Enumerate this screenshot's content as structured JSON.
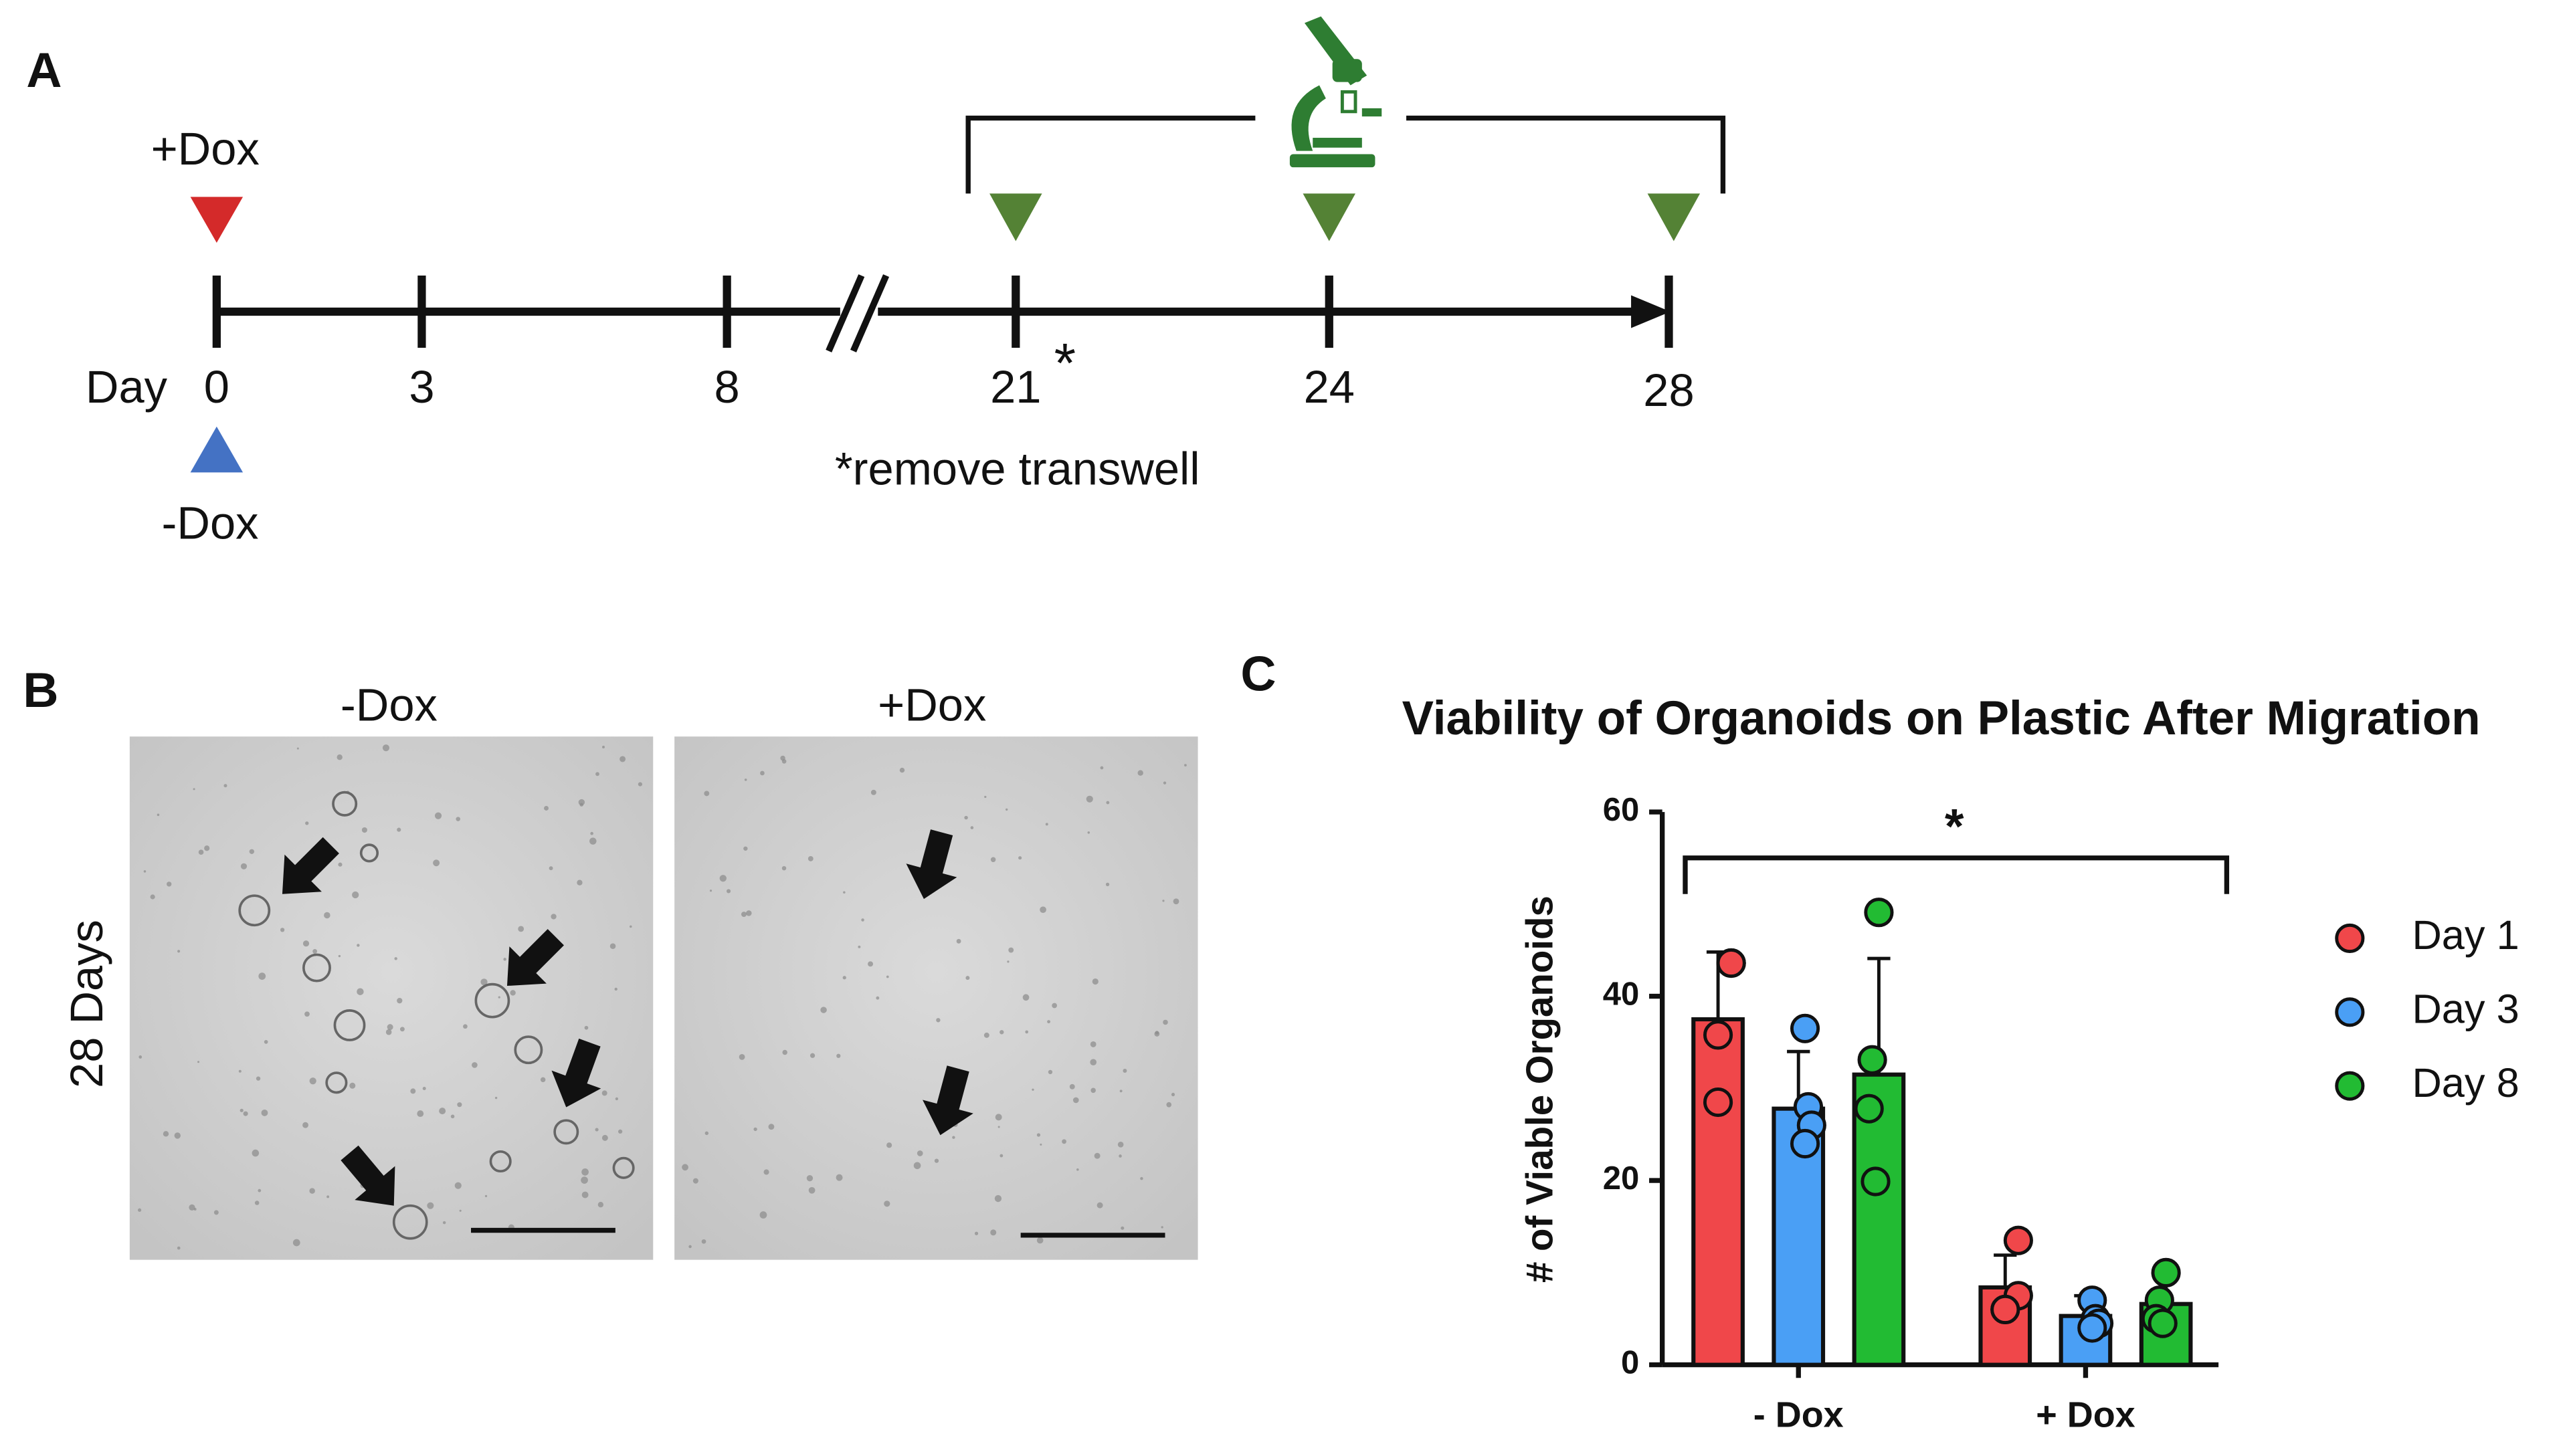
{
  "panel_labels": [
    "A",
    "B",
    "C"
  ],
  "timeline": {
    "treatment_top": "+Dox",
    "treatment_bottom": "-Dox",
    "day_label": "Day",
    "days": [
      "0",
      "3",
      "8",
      "21",
      "24",
      "28"
    ],
    "note_marker": "*",
    "note": "*remove transwell"
  },
  "images": {
    "columns": [
      "-Dox",
      "+Dox"
    ],
    "row": "28 Days"
  },
  "chart_data": {
    "type": "bar",
    "title": "Viability of Organoids on Plastic After Migration",
    "y_label": "# of Viable Organoids",
    "categories": [
      "- Dox",
      "+ Dox"
    ],
    "ylim": [
      0,
      60
    ],
    "yticks": [
      0,
      20,
      40,
      60
    ],
    "significance": "*",
    "series": [
      {
        "name": "Day 1",
        "color": "#f0474a",
        "values": [
          37.5,
          8.4
        ],
        "errors": [
          7.3,
          3.5
        ],
        "points": [
          [
            43.6,
            43.6,
            35.8,
            28.5
          ],
          [
            13.5,
            7.5,
            6,
            6
          ]
        ]
      },
      {
        "name": "Day 3",
        "color": "#4a9ff5",
        "values": [
          27.8,
          5.3
        ],
        "errors": [
          6.2,
          2.2
        ],
        "points": [
          [
            36.5,
            28,
            26,
            24
          ],
          [
            7,
            5,
            4.5,
            4
          ]
        ]
      },
      {
        "name": "Day 8",
        "color": "#22bb33",
        "values": [
          31.5,
          6.6
        ],
        "errors": [
          12.6,
          2.7
        ],
        "points": [
          [
            49.1,
            33.1,
            27.8,
            19.9
          ],
          [
            10,
            7,
            5,
            4.5
          ]
        ]
      }
    ]
  }
}
